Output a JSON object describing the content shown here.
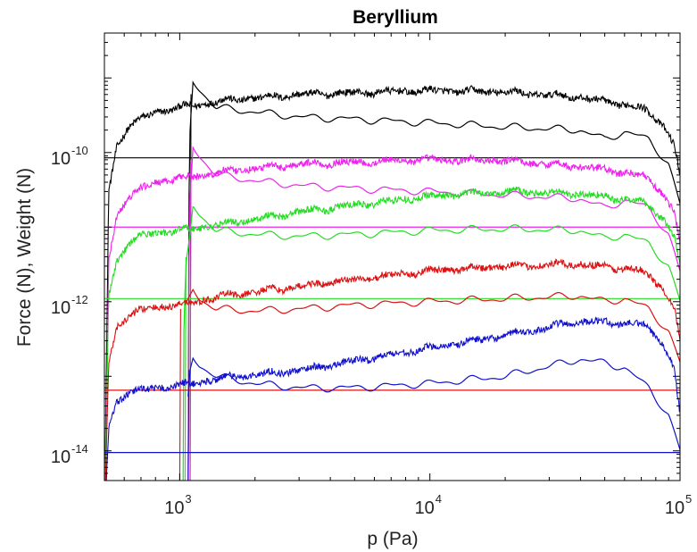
{
  "chart_data": {
    "type": "line",
    "title": "Beryllium",
    "xlabel": "p (Pa)",
    "ylabel": "Force (N), Weight (N)",
    "x_scale": "log",
    "y_scale": "log",
    "xlim": [
      500,
      100000
    ],
    "ylim": [
      4e-15,
      4e-09
    ],
    "x_ticks": [
      {
        "value": 1000,
        "base": "10",
        "exp": "3"
      },
      {
        "value": 10000,
        "base": "10",
        "exp": "4"
      },
      {
        "value": 100000,
        "base": "10",
        "exp": "5"
      }
    ],
    "y_ticks": [
      {
        "value": 1e-14,
        "base": "10",
        "exp": "-14"
      },
      {
        "value": 1e-12,
        "base": "10",
        "exp": "-12"
      },
      {
        "value": 1e-10,
        "base": "10",
        "exp": "-10"
      }
    ],
    "grid": false,
    "legend": "none",
    "series": [
      {
        "color": "#000000",
        "weight": 8.5e-11,
        "onset_p": 1100,
        "noisy_points": [
          [
            500,
            1e-15
          ],
          [
            520,
            3e-11
          ],
          [
            560,
            1.2e-10
          ],
          [
            620,
            2.2e-10
          ],
          [
            700,
            2.8e-10
          ],
          [
            800,
            3.5e-10
          ],
          [
            1000,
            4e-10
          ],
          [
            1500,
            5e-10
          ],
          [
            3000,
            6e-10
          ],
          [
            10000,
            6.8e-10
          ],
          [
            20000,
            6.5e-10
          ],
          [
            40000,
            5.5e-10
          ],
          [
            70000,
            4e-10
          ],
          [
            85000,
            2.5e-10
          ],
          [
            95000,
            1.2e-10
          ],
          [
            100000,
            5e-11
          ]
        ],
        "smooth_points": [
          [
            1080,
            1e-15
          ],
          [
            1085,
            1e-11
          ],
          [
            1100,
            2e-10
          ],
          [
            1130,
            9e-10
          ],
          [
            1200,
            7e-10
          ],
          [
            1400,
            4e-10
          ],
          [
            2000,
            3.5e-10
          ],
          [
            3000,
            3e-10
          ],
          [
            5000,
            2.8e-10
          ],
          [
            10000,
            2.5e-10
          ],
          [
            20000,
            2.2e-10
          ],
          [
            40000,
            2e-10
          ],
          [
            50000,
            1.5e-10
          ],
          [
            60000,
            1.9e-10
          ],
          [
            75000,
            1.5e-10
          ],
          [
            90000,
            7e-11
          ],
          [
            100000,
            2e-11
          ]
        ]
      },
      {
        "color": "#ee22ee",
        "weight": 1e-11,
        "onset_p": 1100,
        "noisy_points": [
          [
            500,
            1e-15
          ],
          [
            520,
            3.5e-12
          ],
          [
            560,
            1.4e-11
          ],
          [
            620,
            2.5e-11
          ],
          [
            700,
            3.2e-11
          ],
          [
            800,
            4e-11
          ],
          [
            1000,
            4.5e-11
          ],
          [
            1500,
            5.5e-11
          ],
          [
            3000,
            7e-11
          ],
          [
            10000,
            8e-11
          ],
          [
            20000,
            7.8e-11
          ],
          [
            40000,
            6.5e-11
          ],
          [
            70000,
            5e-11
          ],
          [
            85000,
            3e-11
          ],
          [
            95000,
            1.5e-11
          ],
          [
            100000,
            6e-12
          ]
        ],
        "smooth_points": [
          [
            1080,
            1e-15
          ],
          [
            1085,
            1.2e-12
          ],
          [
            1100,
            2.5e-11
          ],
          [
            1130,
            1.2e-10
          ],
          [
            1200,
            9e-11
          ],
          [
            1400,
            5e-11
          ],
          [
            2000,
            4.2e-11
          ],
          [
            3000,
            3.6e-11
          ],
          [
            5000,
            3.3e-11
          ],
          [
            10000,
            3e-11
          ],
          [
            20000,
            2.7e-11
          ],
          [
            40000,
            2.4e-11
          ],
          [
            50000,
            1.8e-11
          ],
          [
            60000,
            2.3e-11
          ],
          [
            75000,
            1.8e-11
          ],
          [
            90000,
            8e-12
          ],
          [
            100000,
            2.5e-12
          ]
        ]
      },
      {
        "color": "#22dd22",
        "weight": 1.1e-12,
        "onset_p": 1050,
        "noisy_points": [
          [
            500,
            1e-15
          ],
          [
            520,
            1.2e-12
          ],
          [
            560,
            3.5e-12
          ],
          [
            620,
            6e-12
          ],
          [
            700,
            7.5e-12
          ],
          [
            800,
            8.5e-12
          ],
          [
            1000,
            9e-12
          ],
          [
            1500,
            1.1e-11
          ],
          [
            3000,
            1.6e-11
          ],
          [
            10000,
            2.6e-11
          ],
          [
            20000,
            3e-11
          ],
          [
            40000,
            2.8e-11
          ],
          [
            70000,
            2.2e-11
          ],
          [
            85000,
            1.4e-11
          ],
          [
            95000,
            7e-12
          ],
          [
            100000,
            3e-12
          ]
        ],
        "smooth_points": [
          [
            1030,
            1e-15
          ],
          [
            1040,
            5e-13
          ],
          [
            1060,
            3e-12
          ],
          [
            1100,
            8e-12
          ],
          [
            1130,
            2e-11
          ],
          [
            1200,
            1.5e-11
          ],
          [
            1400,
            9e-12
          ],
          [
            2000,
            8e-12
          ],
          [
            3000,
            7.5e-12
          ],
          [
            5000,
            8e-12
          ],
          [
            10000,
            9e-12
          ],
          [
            20000,
            9.5e-12
          ],
          [
            40000,
            9e-12
          ],
          [
            50000,
            7e-12
          ],
          [
            60000,
            8e-12
          ],
          [
            75000,
            6e-12
          ],
          [
            90000,
            3e-12
          ],
          [
            100000,
            1e-12
          ]
        ]
      },
      {
        "color": "#dd1111",
        "weight": 6.5e-14,
        "onset_p": 1000,
        "noisy_points": [
          [
            500,
            1e-15
          ],
          [
            520,
            1.5e-13
          ],
          [
            560,
            4.5e-13
          ],
          [
            620,
            6.5e-13
          ],
          [
            700,
            7.5e-13
          ],
          [
            800,
            8.5e-13
          ],
          [
            1000,
            9e-13
          ],
          [
            1500,
            1.2e-12
          ],
          [
            3000,
            1.6e-12
          ],
          [
            10000,
            2.6e-12
          ],
          [
            20000,
            3e-12
          ],
          [
            40000,
            3.2e-12
          ],
          [
            70000,
            2.6e-12
          ],
          [
            85000,
            1.6e-12
          ],
          [
            95000,
            8e-13
          ],
          [
            100000,
            3e-13
          ]
        ],
        "smooth_points": [
          [
            1050,
            8e-13
          ],
          [
            1100,
            1.2e-12
          ],
          [
            1130,
            1.5e-12
          ],
          [
            1200,
            1.1e-12
          ],
          [
            1400,
            8e-13
          ],
          [
            2000,
            7.5e-13
          ],
          [
            3000,
            8e-13
          ],
          [
            5000,
            9e-13
          ],
          [
            10000,
            1e-12
          ],
          [
            20000,
            1.1e-12
          ],
          [
            40000,
            1.2e-12
          ],
          [
            50000,
            1e-12
          ],
          [
            60000,
            1.1e-12
          ],
          [
            75000,
            8e-13
          ],
          [
            90000,
            4e-13
          ],
          [
            100000,
            1.5e-13
          ]
        ]
      },
      {
        "color": "#1111cc",
        "weight": 9.5e-15,
        "onset_p": 1080,
        "noisy_points": [
          [
            500,
            1e-15
          ],
          [
            520,
            2e-14
          ],
          [
            560,
            4.5e-14
          ],
          [
            620,
            6e-14
          ],
          [
            700,
            6.5e-14
          ],
          [
            800,
            7e-14
          ],
          [
            1000,
            7.5e-14
          ],
          [
            1500,
            9.5e-14
          ],
          [
            3000,
            1.2e-13
          ],
          [
            10000,
            2.4e-13
          ],
          [
            20000,
            3.5e-13
          ],
          [
            40000,
            5.5e-13
          ],
          [
            70000,
            5e-13
          ],
          [
            85000,
            3e-13
          ],
          [
            95000,
            1.2e-13
          ],
          [
            100000,
            3e-14
          ]
        ],
        "smooth_points": [
          [
            1080,
            5e-14
          ],
          [
            1100,
            1.2e-13
          ],
          [
            1130,
            1.8e-13
          ],
          [
            1200,
            1.4e-13
          ],
          [
            1400,
            1e-13
          ],
          [
            2000,
            8e-14
          ],
          [
            3000,
            7e-14
          ],
          [
            5000,
            7e-14
          ],
          [
            10000,
            8e-14
          ],
          [
            20000,
            1e-13
          ],
          [
            40000,
            1.7e-13
          ],
          [
            50000,
            1.5e-13
          ],
          [
            60000,
            1.3e-13
          ],
          [
            75000,
            7e-14
          ],
          [
            90000,
            3e-14
          ],
          [
            100000,
            1e-14
          ]
        ]
      }
    ]
  }
}
